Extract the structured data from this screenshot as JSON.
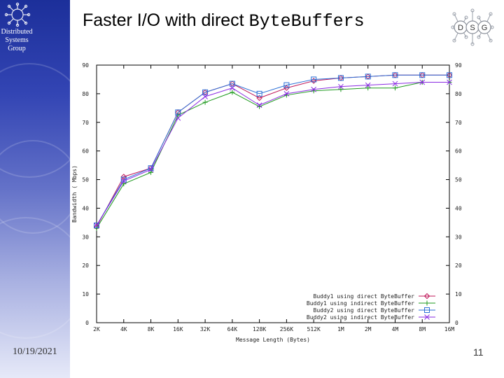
{
  "slide": {
    "title_text": "Faster I/O with direct ",
    "title_code": "ByteBuffers",
    "date": "10/19/2021",
    "page_number": "11"
  },
  "branding": {
    "group_lines": [
      "Distributed",
      "Systems",
      "Group"
    ],
    "logo_letters": [
      "D",
      "S",
      "G"
    ],
    "accent_color": "#2f45b0"
  },
  "chart_data": {
    "type": "line",
    "xlabel": "Message Length (Bytes)",
    "ylabel": "Bandwidth ( Mbps)",
    "categories": [
      "2K",
      "4K",
      "8K",
      "16K",
      "32K",
      "64K",
      "128K",
      "256K",
      "512K",
      "1M",
      "2M",
      "4M",
      "8M",
      "16M"
    ],
    "yticks": [
      0,
      10,
      20,
      30,
      40,
      50,
      60,
      70,
      80,
      90
    ],
    "ylim": [
      0,
      90
    ],
    "grid": false,
    "legend_position": "bottom-right",
    "series": [
      {
        "name": "Buddy1 using direct ByteBuffer",
        "marker": "diamond",
        "color": "#c0185a",
        "values": [
          33.5,
          51,
          54,
          73.5,
          80.5,
          83.5,
          78.5,
          82,
          84.5,
          85.5,
          86,
          86.5,
          86.5,
          86.5
        ]
      },
      {
        "name": "Buddy1 using indirect ByteBuffer",
        "marker": "plus",
        "color": "#1f9a1f",
        "values": [
          33,
          48.5,
          52.5,
          72.5,
          77,
          80.5,
          75.5,
          79.5,
          81,
          81.5,
          82,
          82,
          84,
          84
        ]
      },
      {
        "name": "Buddy2 using direct ByteBuffer",
        "marker": "square",
        "color": "#2a6fd6",
        "values": [
          34,
          50,
          54,
          73.5,
          80.5,
          83.5,
          80,
          83,
          85,
          85.5,
          86,
          86.5,
          86.5,
          86.5
        ]
      },
      {
        "name": "Buddy2 using indirect ByteBuffer",
        "marker": "x",
        "color": "#8a2be2",
        "values": [
          34,
          49.5,
          53.5,
          71.5,
          79,
          82,
          76,
          80,
          81.5,
          82.5,
          83,
          83.5,
          84,
          84
        ]
      }
    ]
  }
}
